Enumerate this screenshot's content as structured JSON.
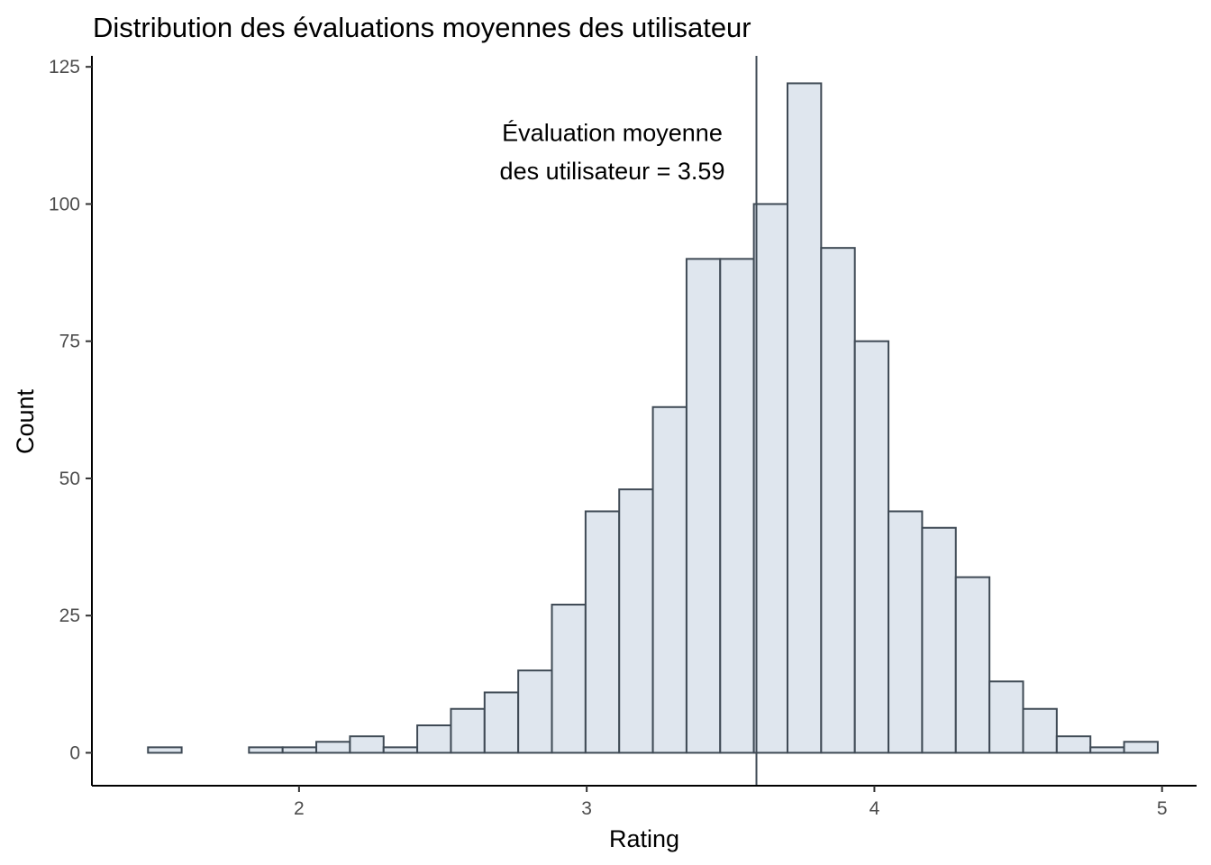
{
  "chart_data": {
    "type": "bar",
    "title": "Distribution des évaluations moyennes des utilisateur",
    "xlabel": "Rating",
    "ylabel": "Count",
    "xlim": [
      1.28,
      5.12
    ],
    "ylim": [
      -6,
      127
    ],
    "x_ticks": [
      2,
      3,
      4,
      5
    ],
    "y_ticks": [
      0,
      25,
      50,
      75,
      100,
      125
    ],
    "bin_width": 0.117,
    "bins": [
      {
        "x0": 1.475,
        "x1": 1.592,
        "count": 1
      },
      {
        "x0": 1.592,
        "x1": 1.709,
        "count": 0
      },
      {
        "x0": 1.709,
        "x1": 1.826,
        "count": 0
      },
      {
        "x0": 1.826,
        "x1": 1.943,
        "count": 1
      },
      {
        "x0": 1.943,
        "x1": 2.06,
        "count": 1
      },
      {
        "x0": 2.06,
        "x1": 2.177,
        "count": 2
      },
      {
        "x0": 2.177,
        "x1": 2.294,
        "count": 3
      },
      {
        "x0": 2.294,
        "x1": 2.411,
        "count": 1
      },
      {
        "x0": 2.411,
        "x1": 2.528,
        "count": 5
      },
      {
        "x0": 2.528,
        "x1": 2.645,
        "count": 8
      },
      {
        "x0": 2.645,
        "x1": 2.762,
        "count": 11
      },
      {
        "x0": 2.762,
        "x1": 2.879,
        "count": 15
      },
      {
        "x0": 2.879,
        "x1": 2.996,
        "count": 27
      },
      {
        "x0": 2.996,
        "x1": 3.113,
        "count": 44
      },
      {
        "x0": 3.113,
        "x1": 3.23,
        "count": 48
      },
      {
        "x0": 3.23,
        "x1": 3.347,
        "count": 63
      },
      {
        "x0": 3.347,
        "x1": 3.464,
        "count": 90
      },
      {
        "x0": 3.464,
        "x1": 3.581,
        "count": 90
      },
      {
        "x0": 3.581,
        "x1": 3.698,
        "count": 100
      },
      {
        "x0": 3.698,
        "x1": 3.815,
        "count": 122
      },
      {
        "x0": 3.815,
        "x1": 3.932,
        "count": 92
      },
      {
        "x0": 3.932,
        "x1": 4.049,
        "count": 75
      },
      {
        "x0": 4.049,
        "x1": 4.166,
        "count": 44
      },
      {
        "x0": 4.166,
        "x1": 4.283,
        "count": 41
      },
      {
        "x0": 4.283,
        "x1": 4.4,
        "count": 32
      },
      {
        "x0": 4.4,
        "x1": 4.517,
        "count": 13
      },
      {
        "x0": 4.517,
        "x1": 4.634,
        "count": 8
      },
      {
        "x0": 4.634,
        "x1": 4.751,
        "count": 3
      },
      {
        "x0": 4.751,
        "x1": 4.868,
        "count": 1
      },
      {
        "x0": 4.868,
        "x1": 4.985,
        "count": 2
      }
    ],
    "mean_line": {
      "x": 3.59,
      "annotation_line1": "Évaluation moyenne",
      "annotation_line2": "des utilisateur = 3.59"
    },
    "colors": {
      "bar_fill": "#dfe6ee",
      "bar_stroke": "#3f4a55",
      "mean_line": "#3f4a55"
    },
    "grid": false,
    "legend": "none"
  }
}
